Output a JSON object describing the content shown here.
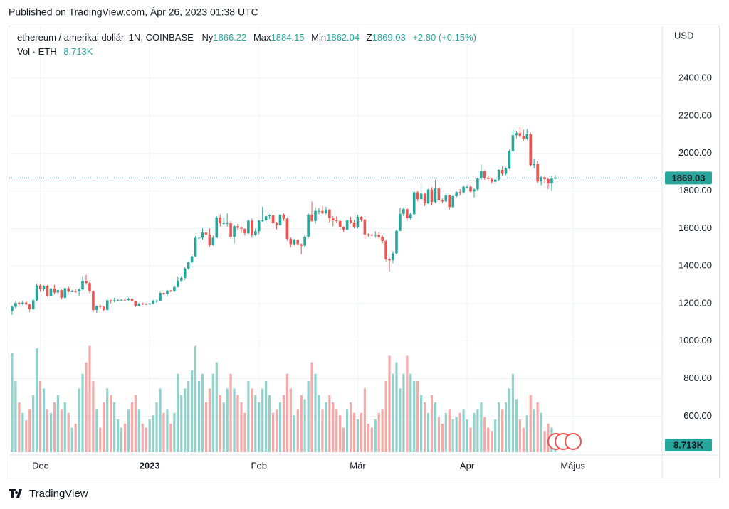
{
  "chart_data": {
    "type": "candlestick",
    "published": "Published on TradingView.com, Ápr 26, 2023 01:38 UTC",
    "title": "ethereum / amerikai dollár, 1N, COINBASE",
    "ohlc_labels": [
      "Ny",
      "Max",
      "Min",
      "Z"
    ],
    "change": "+2.80 (+0.15%)",
    "currency": "USD",
    "brand": "TradingView",
    "up_color": "#26a69a",
    "down_color": "#ef5350",
    "grid": true,
    "open": [
      1160,
      1183,
      1203,
      1198,
      1205,
      1195,
      1170,
      1217,
      1296,
      1276,
      1293,
      1241,
      1280,
      1259,
      1271,
      1231,
      1281,
      1264,
      1265,
      1264,
      1275,
      1321,
      1309,
      1266,
      1166,
      1186,
      1183,
      1166,
      1217,
      1212,
      1217,
      1219,
      1220,
      1219,
      1226,
      1212,
      1188,
      1200,
      1198,
      1196,
      1200,
      1214,
      1214,
      1256,
      1251,
      1269,
      1264,
      1288,
      1322,
      1336,
      1386,
      1419,
      1451,
      1550,
      1551,
      1578,
      1568,
      1513,
      1551,
      1659,
      1627,
      1628,
      1629,
      1556,
      1612,
      1603,
      1598,
      1574,
      1642,
      1567,
      1585,
      1641,
      1643,
      1665,
      1670,
      1629,
      1617,
      1674,
      1652,
      1544,
      1516,
      1539,
      1516,
      1508,
      1556,
      1674,
      1640,
      1693,
      1693,
      1682,
      1700,
      1656,
      1643,
      1640,
      1607,
      1593,
      1643,
      1632,
      1605,
      1662,
      1647,
      1568,
      1566,
      1565,
      1565,
      1555,
      1533,
      1436,
      1430,
      1467,
      1587,
      1678,
      1703,
      1655,
      1676,
      1793,
      1756,
      1785,
      1734,
      1807,
      1741,
      1813,
      1751,
      1744,
      1776,
      1714,
      1772,
      1793,
      1792,
      1822,
      1822,
      1797,
      1808,
      1866,
      1906,
      1870,
      1864,
      1849,
      1860,
      1912,
      1891,
      1919,
      2012,
      2097,
      2108,
      2092,
      2077,
      2102,
      1937,
      1944,
      1850,
      1873,
      1863,
      1840,
      1866.22
    ],
    "high": [
      1190,
      1215,
      1210,
      1215,
      1212,
      1200,
      1228,
      1305,
      1302,
      1298,
      1298,
      1285,
      1300,
      1275,
      1275,
      1285,
      1290,
      1273,
      1277,
      1281,
      1345,
      1352,
      1318,
      1270,
      1190,
      1195,
      1188,
      1220,
      1220,
      1230,
      1222,
      1222,
      1224,
      1232,
      1228,
      1215,
      1204,
      1205,
      1202,
      1203,
      1220,
      1222,
      1262,
      1259,
      1273,
      1272,
      1297,
      1345,
      1346,
      1394,
      1424,
      1465,
      1560,
      1565,
      1600,
      1595,
      1600,
      1562,
      1665,
      1675,
      1660,
      1680,
      1638,
      1620,
      1625,
      1610,
      1600,
      1648,
      1652,
      1600,
      1645,
      1715,
      1676,
      1675,
      1675,
      1635,
      1680,
      1680,
      1658,
      1552,
      1545,
      1543,
      1520,
      1565,
      1680,
      1744,
      1712,
      1708,
      1720,
      1715,
      1705,
      1665,
      1665,
      1645,
      1610,
      1648,
      1662,
      1645,
      1672,
      1665,
      1652,
      1575,
      1572,
      1585,
      1580,
      1563,
      1541,
      1445,
      1478,
      1592,
      1710,
      1712,
      1712,
      1685,
      1800,
      1800,
      1840,
      1790,
      1812,
      1820,
      1860,
      1820,
      1760,
      1785,
      1780,
      1780,
      1800,
      1810,
      1830,
      1830,
      1832,
      1815,
      1870,
      1940,
      1910,
      1880,
      1870,
      1865,
      1915,
      1930,
      1925,
      2020,
      2125,
      2120,
      2140,
      2125,
      2130,
      2112,
      1970,
      1960,
      1880,
      1880,
      1870,
      1880,
      1884.15
    ],
    "low": [
      1140,
      1175,
      1190,
      1192,
      1190,
      1155,
      1165,
      1210,
      1262,
      1265,
      1236,
      1238,
      1250,
      1242,
      1222,
      1226,
      1258,
      1260,
      1258,
      1242,
      1270,
      1300,
      1255,
      1155,
      1150,
      1174,
      1160,
      1162,
      1200,
      1207,
      1212,
      1215,
      1213,
      1215,
      1204,
      1182,
      1185,
      1192,
      1192,
      1193,
      1195,
      1205,
      1212,
      1245,
      1238,
      1260,
      1262,
      1285,
      1318,
      1325,
      1380,
      1393,
      1448,
      1520,
      1540,
      1545,
      1502,
      1508,
      1550,
      1610,
      1620,
      1610,
      1545,
      1522,
      1590,
      1575,
      1562,
      1570,
      1550,
      1560,
      1570,
      1635,
      1625,
      1650,
      1620,
      1595,
      1615,
      1640,
      1535,
      1500,
      1510,
      1510,
      1462,
      1500,
      1550,
      1635,
      1625,
      1675,
      1675,
      1675,
      1630,
      1610,
      1630,
      1590,
      1580,
      1590,
      1625,
      1600,
      1600,
      1637,
      1545,
      1555,
      1558,
      1550,
      1545,
      1520,
      1425,
      1370,
      1415,
      1460,
      1585,
      1665,
      1640,
      1645,
      1670,
      1745,
      1750,
      1720,
      1730,
      1725,
      1735,
      1740,
      1735,
      1740,
      1700,
      1710,
      1765,
      1775,
      1785,
      1812,
      1790,
      1765,
      1800,
      1860,
      1860,
      1850,
      1840,
      1835,
      1855,
      1880,
      1885,
      1915,
      2005,
      2080,
      2085,
      2065,
      2070,
      1930,
      1920,
      1840,
      1830,
      1840,
      1810,
      1800,
      1862.04
    ],
    "close": [
      1183,
      1203,
      1198,
      1205,
      1195,
      1170,
      1217,
      1296,
      1276,
      1293,
      1241,
      1280,
      1259,
      1271,
      1231,
      1281,
      1264,
      1265,
      1264,
      1275,
      1321,
      1309,
      1266,
      1166,
      1186,
      1183,
      1166,
      1217,
      1212,
      1217,
      1219,
      1220,
      1219,
      1226,
      1212,
      1188,
      1200,
      1198,
      1196,
      1200,
      1214,
      1214,
      1256,
      1251,
      1269,
      1264,
      1288,
      1322,
      1336,
      1386,
      1419,
      1451,
      1550,
      1551,
      1578,
      1568,
      1513,
      1551,
      1659,
      1627,
      1628,
      1629,
      1556,
      1612,
      1603,
      1598,
      1574,
      1642,
      1567,
      1585,
      1641,
      1643,
      1665,
      1670,
      1629,
      1617,
      1674,
      1652,
      1544,
      1516,
      1539,
      1516,
      1508,
      1556,
      1674,
      1640,
      1693,
      1693,
      1682,
      1700,
      1656,
      1643,
      1640,
      1607,
      1593,
      1643,
      1632,
      1605,
      1662,
      1647,
      1568,
      1566,
      1565,
      1565,
      1555,
      1533,
      1436,
      1430,
      1467,
      1587,
      1678,
      1703,
      1655,
      1676,
      1793,
      1756,
      1785,
      1734,
      1807,
      1741,
      1813,
      1751,
      1744,
      1776,
      1714,
      1772,
      1793,
      1792,
      1822,
      1822,
      1797,
      1808,
      1866,
      1906,
      1870,
      1864,
      1849,
      1860,
      1912,
      1891,
      1919,
      2012,
      2097,
      2108,
      2092,
      2077,
      2102,
      1937,
      1944,
      1850,
      1873,
      1863,
      1840,
      1866.22,
      1869.03
    ],
    "volume": {
      "title": "Vol · ETH",
      "last_label": "8.713K",
      "ylim": [
        0,
        148000
      ],
      "values": [
        121000,
        87000,
        61000,
        48000,
        39000,
        52000,
        70000,
        127000,
        87000,
        78000,
        52000,
        48000,
        61000,
        70000,
        52000,
        61000,
        48000,
        30000,
        35000,
        78000,
        96000,
        110000,
        130000,
        87000,
        52000,
        30000,
        61000,
        78000,
        70000,
        61000,
        40000,
        30000,
        35000,
        52000,
        61000,
        70000,
        52000,
        35000,
        30000,
        40000,
        45000,
        61000,
        78000,
        48000,
        52000,
        35000,
        48000,
        96000,
        70000,
        78000,
        87000,
        100000,
        130000,
        87000,
        96000,
        61000,
        78000,
        96000,
        110000,
        70000,
        61000,
        78000,
        96000,
        78000,
        70000,
        61000,
        48000,
        87000,
        78000,
        70000,
        61000,
        78000,
        87000,
        70000,
        48000,
        52000,
        61000,
        70000,
        96000,
        78000,
        45000,
        52000,
        70000,
        65000,
        87000,
        110000,
        96000,
        70000,
        52000,
        61000,
        70000,
        61000,
        52000,
        45000,
        30000,
        52000,
        61000,
        48000,
        40000,
        48000,
        78000,
        35000,
        30000,
        40000,
        48000,
        52000,
        87000,
        118000,
        96000,
        110000,
        78000,
        96000,
        118000,
        96000,
        87000,
        87000,
        70000,
        61000,
        48000,
        70000,
        61000,
        43000,
        35000,
        48000,
        52000,
        40000,
        43000,
        48000,
        52000,
        40000,
        30000,
        48000,
        52000,
        61000,
        43000,
        30000,
        26000,
        40000,
        61000,
        52000,
        61000,
        78000,
        96000,
        65000,
        40000,
        30000,
        45000,
        70000,
        52000,
        61000,
        48000,
        26000,
        35000,
        30000,
        8713
      ]
    },
    "ylim": [
      393,
      2677
    ],
    "yticks": [
      {
        "value": 600,
        "label": "600.00"
      },
      {
        "value": 800,
        "label": "800.00"
      },
      {
        "value": 1000,
        "label": "1000.00"
      },
      {
        "value": 1200,
        "label": "1200.00"
      },
      {
        "value": 1400,
        "label": "1400.00"
      },
      {
        "value": 1600,
        "label": "1600.00"
      },
      {
        "value": 1800,
        "label": "1800.00"
      },
      {
        "value": 2000,
        "label": "2000.00"
      },
      {
        "value": 2200,
        "label": "2200.00"
      },
      {
        "value": 2400,
        "label": "2400.00"
      }
    ],
    "xlim": [
      -0.8,
      184.3
    ],
    "xticks": [
      {
        "value": 8,
        "label": "Dec"
      },
      {
        "value": 39,
        "label": "2023"
      },
      {
        "value": 70,
        "label": "Feb"
      },
      {
        "value": 98,
        "label": "Már"
      },
      {
        "value": 129,
        "label": "Ápr"
      },
      {
        "value": 159,
        "label": "Május"
      }
    ]
  }
}
